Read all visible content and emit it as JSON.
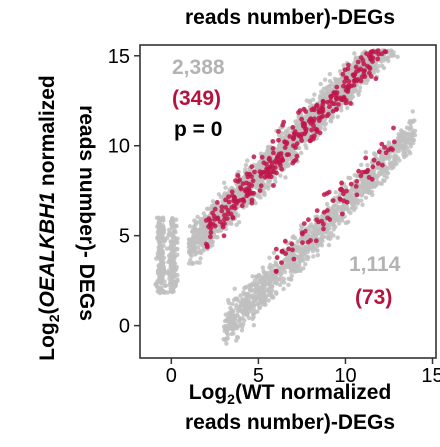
{
  "chart_data": {
    "type": "scatter",
    "top_text": "reads number)-DEGs",
    "xlabel": {
      "line1_prefix": "Log",
      "line1_sub": "2",
      "line1_rest": "(WT normalized",
      "line2": "reads number)-DEGs"
    },
    "ylabel": {
      "line1_prefix": "Log",
      "line1_sub": "2",
      "line1_italic": "OEALKBH1",
      "line1_rest": " normalized",
      "line2": "reads number)- DEGs"
    },
    "xlim": [
      -1.8,
      15.2
    ],
    "ylim": [
      -1.8,
      15.6
    ],
    "x_ticks": [
      {
        "value": 0,
        "label": "0"
      },
      {
        "value": 5,
        "label": "5"
      },
      {
        "value": 10,
        "label": "10"
      },
      {
        "value": 15,
        "label": "15"
      }
    ],
    "y_ticks": [
      {
        "value": 0,
        "label": "0"
      },
      {
        "value": 5,
        "label": "5"
      },
      {
        "value": 10,
        "label": "10"
      },
      {
        "value": 15,
        "label": "15"
      }
    ],
    "annotations": {
      "upper_total": "2,388",
      "upper_highlight": "(349)",
      "p_value": "p = 0",
      "lower_total": "1,114",
      "lower_highlight": "(73)"
    },
    "series": [
      {
        "color": "#c0c0c0",
        "clusters": [
          {
            "band": "upper",
            "x_range": [
              -1,
              13
            ],
            "offset": 3.3,
            "count": 2388
          },
          {
            "band": "lower",
            "x_range": [
              3,
              14
            ],
            "offset": -3.2,
            "count": 1114
          }
        ]
      },
      {
        "color": "#c0154a",
        "clusters": [
          {
            "band": "upper",
            "x_range": [
              2,
              13
            ],
            "offset": 3.3,
            "count": 349
          },
          {
            "band": "lower",
            "x_range": [
              6,
              13
            ],
            "offset": -2.6,
            "count": 73
          }
        ]
      }
    ],
    "colors": {
      "gray": "#b3b3b3",
      "red": "#b5123e",
      "text": "#000000",
      "frame": "#333333"
    },
    "grid": false
  }
}
